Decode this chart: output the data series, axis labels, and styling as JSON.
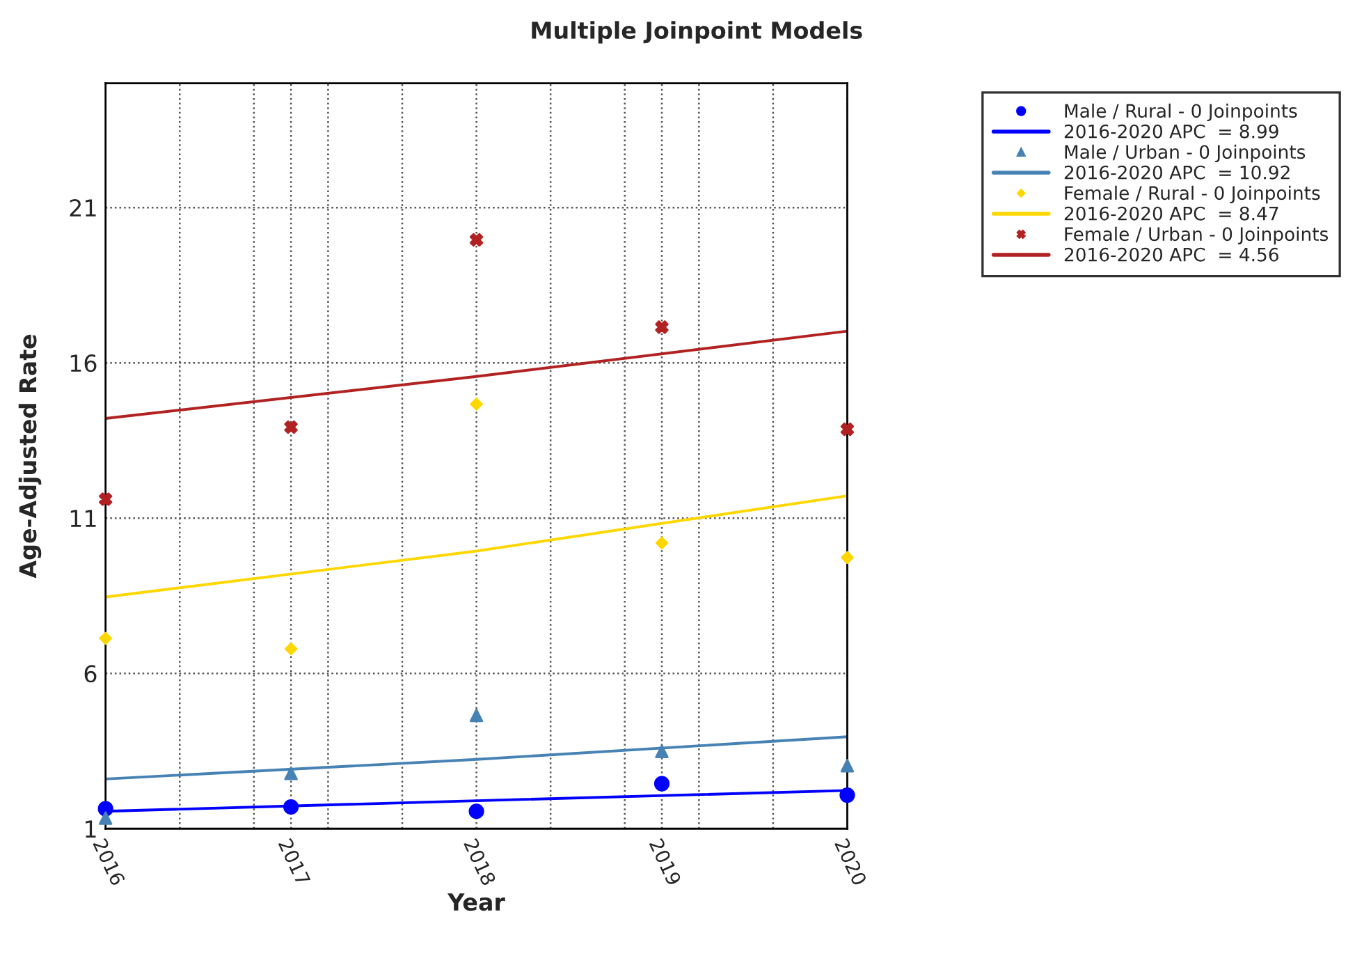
{
  "chart_data": {
    "type": "scatter",
    "title": "Multiple Joinpoint Models",
    "xlabel": "Year",
    "ylabel": "Age-Adjusted Rate",
    "xlim": [
      2016,
      2020
    ],
    "xticks": [
      2016,
      {
        "value": 2016.4,
        "label": null
      },
      {
        "value": 2016.8,
        "label": null
      },
      2017,
      {
        "value": 2017.2,
        "label": null
      },
      {
        "value": 2017.6,
        "label": null
      },
      2018,
      {
        "value": 2018.4,
        "label": null
      },
      {
        "value": 2018.8,
        "label": null
      },
      2019,
      {
        "value": 2019.2,
        "label": null
      },
      {
        "value": 2019.6,
        "label": null
      },
      2020
    ],
    "ylim": [
      1,
      25
    ],
    "yticks": [
      1,
      6,
      11,
      16,
      21
    ],
    "grid": true,
    "legend": "top right",
    "series": [
      {
        "name": "Male / Rural - 0 Joinpoints",
        "color": "#0000ff",
        "marker": "circle",
        "x": [
          2016,
          2017,
          2018,
          2019,
          2020
        ],
        "values": [
          1.64,
          1.7,
          1.56,
          2.45,
          2.08
        ]
      },
      {
        "type": "line",
        "name": "2016-2020 APC  = 8.99",
        "color": "#0000ff",
        "line_style": "solid",
        "x": [
          2016,
          2018,
          2020
        ],
        "values": [
          1.56,
          1.9,
          2.23
        ]
      },
      {
        "name": "Male / Urban - 0 Joinpoints",
        "color": "#4682b4",
        "marker": "triangle",
        "x": [
          2016,
          2017,
          2018,
          2019,
          2020
        ],
        "values": [
          1.34,
          2.78,
          4.65,
          3.49,
          3.03
        ]
      },
      {
        "type": "line",
        "name": "2016-2020 APC  = 10.92",
        "color": "#4682b4",
        "line_style": "solid",
        "x": [
          2016,
          2018,
          2020
        ],
        "values": [
          2.6,
          3.23,
          3.96
        ]
      },
      {
        "name": "Female / Rural - 0 Joinpoints",
        "color": "#ffd700",
        "marker": "diamond",
        "x": [
          2016,
          2017,
          2018,
          2019,
          2020
        ],
        "values": [
          7.13,
          6.79,
          14.67,
          10.2,
          9.73
        ]
      },
      {
        "type": "line",
        "name": "2016-2020 APC  = 8.47",
        "color": "#ffd700",
        "line_style": "solid",
        "x": [
          2016,
          2018,
          2020
        ],
        "values": [
          8.46,
          9.94,
          11.72
        ]
      },
      {
        "name": "Female / Urban - 0 Joinpoints",
        "color": "#b22222",
        "marker": "cross",
        "x": [
          2016,
          2017,
          2018,
          2019,
          2020
        ],
        "values": [
          11.61,
          13.93,
          19.96,
          17.15,
          13.86
        ]
      },
      {
        "type": "line",
        "name": "2016-2020 APC  = 4.56",
        "color": "#b22222",
        "line_style": "solid",
        "x": [
          2016,
          2018,
          2020
        ],
        "values": [
          14.21,
          15.56,
          17.02
        ]
      }
    ]
  }
}
